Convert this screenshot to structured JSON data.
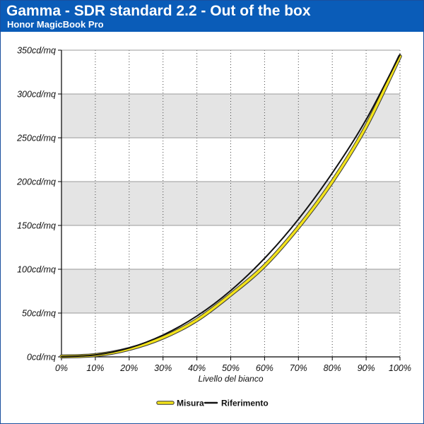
{
  "header": {
    "title": "Gamma - SDR standard 2.2 - Out of the box",
    "subtitle": "Honor MagicBook Pro"
  },
  "colors": {
    "header_bg": "#0a5cb8",
    "band": "#e4e4e4",
    "measured": "#f2e21a",
    "reference": "#111111"
  },
  "chart_data": {
    "type": "line",
    "xlabel": "Livello del bianco",
    "x_ticks": [
      "0%",
      "10%",
      "20%",
      "30%",
      "40%",
      "50%",
      "60%",
      "70%",
      "80%",
      "90%",
      "100%"
    ],
    "y_ticks": [
      "0cd/mq",
      "50cd/mq",
      "100cd/mq",
      "150cd/mq",
      "200cd/mq",
      "250cd/mq",
      "300cd/mq",
      "350cd/mq"
    ],
    "xlim": [
      0,
      100
    ],
    "ylim": [
      0,
      350
    ],
    "grid": true,
    "legend_position": "bottom-center",
    "x": [
      0,
      10,
      20,
      30,
      40,
      50,
      60,
      70,
      80,
      90,
      100
    ],
    "series": [
      {
        "name": "Misura",
        "color": "#f2e21a",
        "values": [
          0.5,
          2,
          9,
          22,
          42,
          71,
          104,
          148,
          200,
          263,
          343
        ]
      },
      {
        "name": "Riferimento",
        "color": "#111111",
        "values": [
          0.3,
          2.2,
          10.2,
          24.9,
          46.6,
          75.7,
          112.5,
          157.1,
          209.8,
          270.7,
          345
        ]
      }
    ]
  }
}
